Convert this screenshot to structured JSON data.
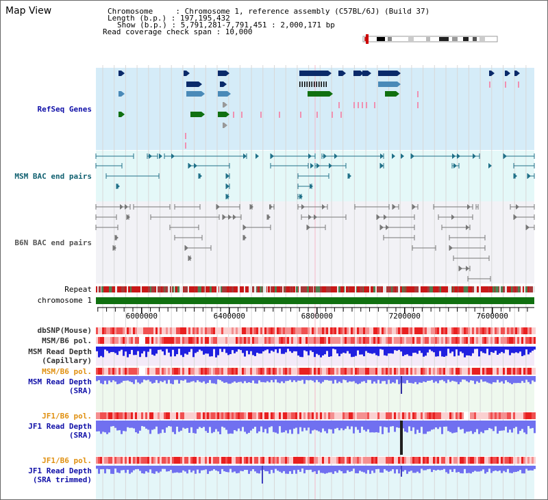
{
  "title": "Map View",
  "header": {
    "chromosome": "Chromosome     : Chromosome 1, reference assembly (C57BL/6J) (Build 37)",
    "length": "Length (b.p.) : 197,195,432",
    "show": "Show (b.p.) : 5,791,281-7,791,451 : 2,000,171 bp",
    "coverage": "Read coverage check span : 10,000"
  },
  "tracks": {
    "refseq": "RefSeq Genes",
    "msm_bac": "MSM BAC end pairs",
    "b6n_bac": "B6N BAC end pairs",
    "repeat": "Repeat",
    "chromosome": "chromosome 1",
    "dbsnp": "dbSNP(Mouse)",
    "msm_pol": "MSM/B6 pol.",
    "msm_depth_cap_1": "MSM Read Depth",
    "msm_depth_cap_2": "(Capillary)",
    "msm_pol2": "MSM/B6 pol.",
    "msm_depth_sra_1": "MSM Read Depth",
    "msm_depth_sra_2": "(SRA)",
    "jf1_pol": "JF1/B6 pol.",
    "jf1_depth_sra_1": "JF1 Read Depth",
    "jf1_depth_sra_2": "(SRA)",
    "jf1_pol2": "JF1/B6 pol.",
    "jf1_depth_trim_1": "JF1 Read Depth",
    "jf1_depth_trim_2": "(SRA trimmed)"
  },
  "axis": {
    "ticks": [
      "6000000",
      "6400000",
      "6800000",
      "7200000",
      "7600000"
    ],
    "start": 5791281,
    "end": 7791451
  },
  "colors": {
    "refseq_bg": "#d5ecf8",
    "msm_bac_bg": "#e4f8f8",
    "b6n_bac_bg": "#f2f2f6",
    "chrom_green": "#107010",
    "depth_blue": "#2020e0",
    "depth_light": "#7070f0"
  }
}
